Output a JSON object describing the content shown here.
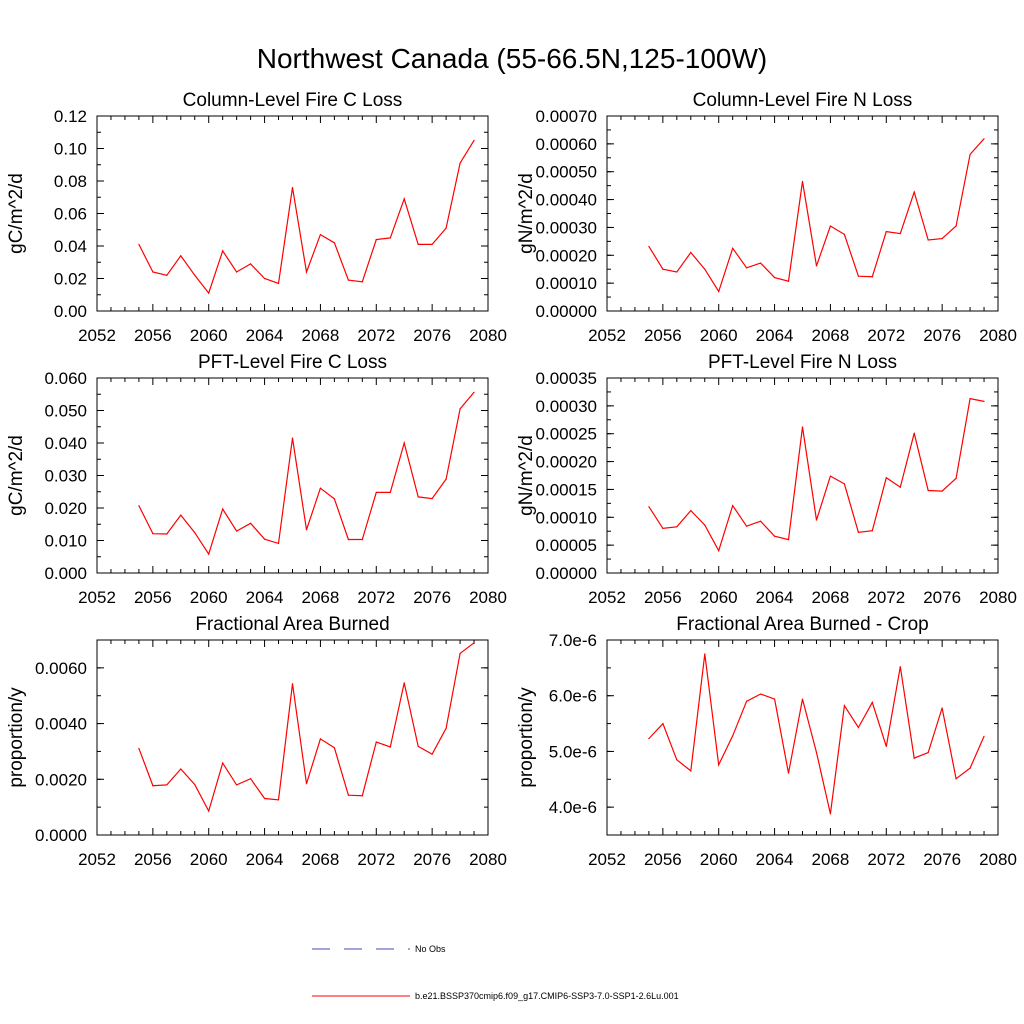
{
  "figure": {
    "title": "Northwest Canada (55-66.5N,125-100W)"
  },
  "colors": {
    "series": "#ff0000",
    "obs": "#3b4bb5",
    "axis": "#000000"
  },
  "legend": {
    "placement": "bottom-center",
    "items": [
      {
        "label": "No Obs",
        "style": "dashed",
        "color": "#3b4bb5"
      },
      {
        "label": "b.e21.BSSP370cmip6.f09_g17.CMIP6-SSP3-7.0-SSP1-2.6Lu.001",
        "style": "solid",
        "color": "#ff0000"
      }
    ]
  },
  "chart_data": [
    {
      "type": "line",
      "title": "Column-Level Fire C Loss",
      "ylabel": "gC/m^2/d",
      "xlim": [
        2052,
        2080
      ],
      "ylim": [
        0,
        0.12
      ],
      "xticks": [
        2052,
        2056,
        2060,
        2064,
        2068,
        2072,
        2076,
        2080
      ],
      "xtick_labels": [
        "2052",
        "2056",
        "2060",
        "2064",
        "2068",
        "2072",
        "2076",
        "2080"
      ],
      "yticks": [
        0,
        0.02,
        0.04,
        0.06,
        0.08,
        0.1,
        0.12
      ],
      "ytick_labels": [
        "0.00",
        "0.02",
        "0.04",
        "0.06",
        "0.08",
        "0.10",
        "0.12"
      ],
      "x": [
        2055,
        2056,
        2057,
        2058,
        2059,
        2060,
        2061,
        2062,
        2063,
        2064,
        2065,
        2066,
        2067,
        2068,
        2069,
        2070,
        2071,
        2072,
        2073,
        2074,
        2075,
        2076,
        2077,
        2078,
        2079
      ],
      "values": [
        0.041,
        0.024,
        0.022,
        0.034,
        0.022,
        0.011,
        0.037,
        0.024,
        0.029,
        0.02,
        0.017,
        0.076,
        0.024,
        0.047,
        0.042,
        0.019,
        0.018,
        0.044,
        0.045,
        0.069,
        0.041,
        0.041,
        0.051,
        0.091,
        0.105
      ]
    },
    {
      "type": "line",
      "title": "Column-Level Fire N Loss",
      "ylabel": "gN/m^2/d",
      "xlim": [
        2052,
        2080
      ],
      "ylim": [
        0,
        0.0007
      ],
      "xticks": [
        2052,
        2056,
        2060,
        2064,
        2068,
        2072,
        2076,
        2080
      ],
      "xtick_labels": [
        "2052",
        "2056",
        "2060",
        "2064",
        "2068",
        "2072",
        "2076",
        "2080"
      ],
      "yticks": [
        0,
        0.0001,
        0.0002,
        0.0003,
        0.0004,
        0.0005,
        0.0006,
        0.0007
      ],
      "ytick_labels": [
        "0.00000",
        "0.00010",
        "0.00020",
        "0.00030",
        "0.00040",
        "0.00050",
        "0.00060",
        "0.00070"
      ],
      "x": [
        2055,
        2056,
        2057,
        2058,
        2059,
        2060,
        2061,
        2062,
        2063,
        2064,
        2065,
        2066,
        2067,
        2068,
        2069,
        2070,
        2071,
        2072,
        2073,
        2074,
        2075,
        2076,
        2077,
        2078,
        2079
      ],
      "values": [
        0.000232,
        0.00015,
        0.00014,
        0.00021,
        0.00015,
        7e-05,
        0.000225,
        0.000155,
        0.000172,
        0.00012,
        0.000107,
        0.000465,
        0.000162,
        0.000305,
        0.000275,
        0.000125,
        0.000123,
        0.000285,
        0.000278,
        0.000427,
        0.000255,
        0.00026,
        0.000305,
        0.000562,
        0.000618
      ]
    },
    {
      "type": "line",
      "title": "PFT-Level Fire C Loss",
      "ylabel": "gC/m^2/d",
      "xlim": [
        2052,
        2080
      ],
      "ylim": [
        0,
        0.06
      ],
      "xticks": [
        2052,
        2056,
        2060,
        2064,
        2068,
        2072,
        2076,
        2080
      ],
      "xtick_labels": [
        "2052",
        "2056",
        "2060",
        "2064",
        "2068",
        "2072",
        "2076",
        "2080"
      ],
      "yticks": [
        0,
        0.01,
        0.02,
        0.03,
        0.04,
        0.05,
        0.06
      ],
      "ytick_labels": [
        "0.000",
        "0.010",
        "0.020",
        "0.030",
        "0.040",
        "0.050",
        "0.060"
      ],
      "x": [
        2055,
        2056,
        2057,
        2058,
        2059,
        2060,
        2061,
        2062,
        2063,
        2064,
        2065,
        2066,
        2067,
        2068,
        2069,
        2070,
        2071,
        2072,
        2073,
        2074,
        2075,
        2076,
        2077,
        2078,
        2079
      ],
      "values": [
        0.0207,
        0.0121,
        0.012,
        0.0178,
        0.0124,
        0.0058,
        0.0197,
        0.0129,
        0.0153,
        0.0104,
        0.0091,
        0.0415,
        0.0133,
        0.0261,
        0.0228,
        0.0103,
        0.0103,
        0.0248,
        0.0248,
        0.04,
        0.0234,
        0.0229,
        0.0289,
        0.0505,
        0.0556
      ]
    },
    {
      "type": "line",
      "title": "PFT-Level Fire N Loss",
      "ylabel": "gN/m^2/d",
      "xlim": [
        2052,
        2080
      ],
      "ylim": [
        0,
        0.00035
      ],
      "xticks": [
        2052,
        2056,
        2060,
        2064,
        2068,
        2072,
        2076,
        2080
      ],
      "xtick_labels": [
        "2052",
        "2056",
        "2060",
        "2064",
        "2068",
        "2072",
        "2076",
        "2080"
      ],
      "yticks": [
        0,
        5e-05,
        0.0001,
        0.00015,
        0.0002,
        0.00025,
        0.0003,
        0.00035
      ],
      "ytick_labels": [
        "0.00000",
        "0.00005",
        "0.00010",
        "0.00015",
        "0.00020",
        "0.00025",
        "0.00030",
        "0.00035"
      ],
      "x": [
        2055,
        2056,
        2057,
        2058,
        2059,
        2060,
        2061,
        2062,
        2063,
        2064,
        2065,
        2066,
        2067,
        2068,
        2069,
        2070,
        2071,
        2072,
        2073,
        2074,
        2075,
        2076,
        2077,
        2078,
        2079
      ],
      "values": [
        0.000119,
        8e-05,
        8.3e-05,
        0.000112,
        8.6e-05,
        4e-05,
        0.000121,
        8.4e-05,
        9.3e-05,
        6.6e-05,
        6e-05,
        0.000262,
        9.5e-05,
        0.000174,
        0.00016,
        7.3e-05,
        7.6e-05,
        0.000171,
        0.000154,
        0.000251,
        0.000148,
        0.000147,
        0.00017,
        0.000313,
        0.000308
      ]
    },
    {
      "type": "line",
      "title": "Fractional Area Burned",
      "ylabel": "proportion/y",
      "xlim": [
        2052,
        2080
      ],
      "ylim": [
        0,
        0.007
      ],
      "xticks": [
        2052,
        2056,
        2060,
        2064,
        2068,
        2072,
        2076,
        2080
      ],
      "xtick_labels": [
        "2052",
        "2056",
        "2060",
        "2064",
        "2068",
        "2072",
        "2076",
        "2080"
      ],
      "yticks": [
        0,
        0.002,
        0.004,
        0.006
      ],
      "ytick_labels": [
        "0.0000",
        "0.0020",
        "0.0040",
        "0.0060"
      ],
      "x": [
        2055,
        2056,
        2057,
        2058,
        2059,
        2060,
        2061,
        2062,
        2063,
        2064,
        2065,
        2066,
        2067,
        2068,
        2069,
        2070,
        2071,
        2072,
        2073,
        2074,
        2075,
        2076,
        2077,
        2078,
        2079
      ],
      "values": [
        0.00311,
        0.00177,
        0.0018,
        0.00237,
        0.00181,
        0.00086,
        0.00258,
        0.0018,
        0.00202,
        0.00131,
        0.00126,
        0.00543,
        0.00184,
        0.00345,
        0.00313,
        0.00143,
        0.00141,
        0.00334,
        0.00316,
        0.00546,
        0.00318,
        0.0029,
        0.00383,
        0.00652,
        0.0069
      ]
    },
    {
      "type": "line",
      "title": "Fractional Area Burned - Crop",
      "ylabel": "proportion/y",
      "xlim": [
        2052,
        2080
      ],
      "ylim": [
        3.5e-06,
        7e-06
      ],
      "xticks": [
        2052,
        2056,
        2060,
        2064,
        2068,
        2072,
        2076,
        2080
      ],
      "xtick_labels": [
        "2052",
        "2056",
        "2060",
        "2064",
        "2068",
        "2072",
        "2076",
        "2080"
      ],
      "yticks": [
        4e-06,
        5e-06,
        6e-06,
        7e-06
      ],
      "ytick_labels": [
        "4.0e-6",
        "5.0e-6",
        "6.0e-6",
        "7.0e-6"
      ],
      "x": [
        2055,
        2056,
        2057,
        2058,
        2059,
        2060,
        2061,
        2062,
        2063,
        2064,
        2065,
        2066,
        2067,
        2068,
        2069,
        2070,
        2071,
        2072,
        2073,
        2074,
        2075,
        2076,
        2077,
        2078,
        2079
      ],
      "values": [
        5.23e-06,
        5.5e-06,
        4.85e-06,
        4.65e-06,
        6.75e-06,
        4.76e-06,
        5.28e-06,
        5.9e-06,
        6.03e-06,
        5.94e-06,
        4.61e-06,
        5.94e-06,
        4.98e-06,
        3.88e-06,
        5.82e-06,
        5.43e-06,
        5.88e-06,
        5.09e-06,
        6.52e-06,
        4.88e-06,
        4.98e-06,
        5.78e-06,
        4.51e-06,
        4.7e-06,
        5.27e-06
      ]
    }
  ]
}
